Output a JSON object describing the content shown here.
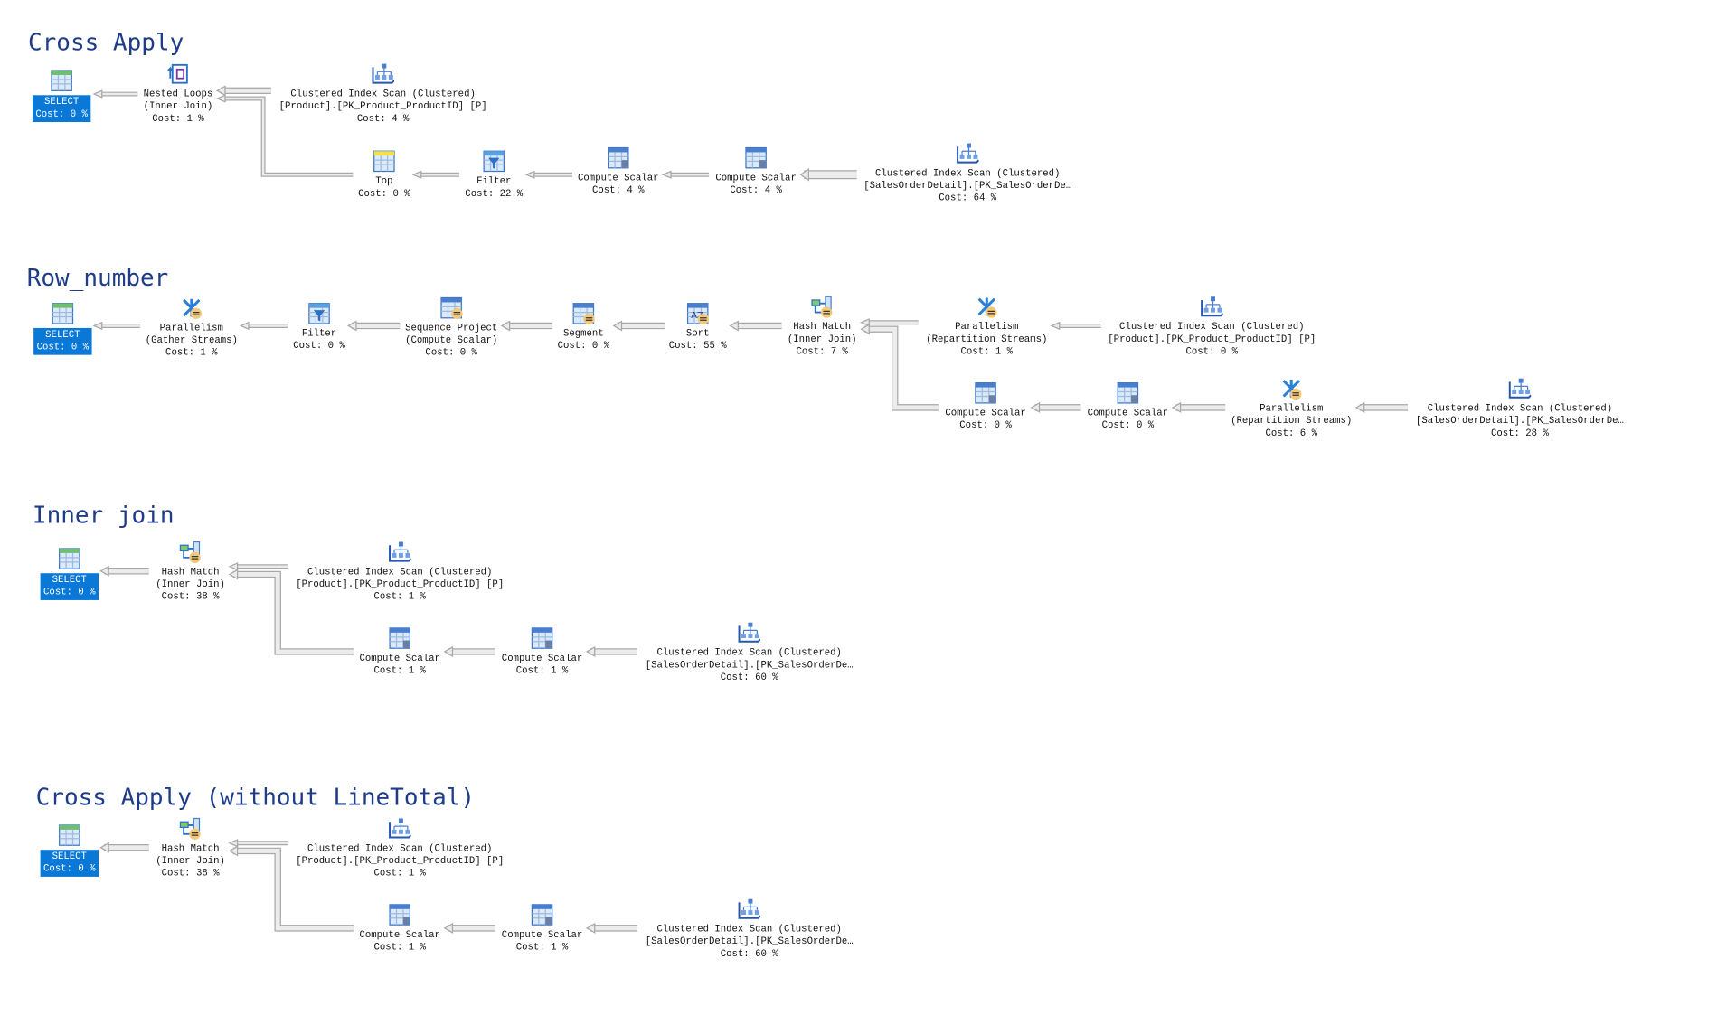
{
  "colors": {
    "title": "#1f3c88",
    "select_highlight": "#0a78d7",
    "arrow": "#a8a8a8"
  },
  "sections": [
    {
      "title": "Cross Apply",
      "nodes": [
        {
          "icon": "select-icon",
          "lines": [
            "SELECT",
            "Cost: 0 %"
          ],
          "selected": true
        },
        {
          "icon": "nested-loops-icon",
          "lines": [
            "Nested Loops",
            "(Inner Join)",
            "Cost: 1 %"
          ]
        },
        {
          "icon": "clustered-index-scan-icon",
          "lines": [
            "Clustered Index Scan (Clustered)",
            "[Product].[PK_Product_ProductID] [P]",
            "Cost: 4 %"
          ]
        },
        {
          "icon": "top-icon",
          "lines": [
            "Top",
            "Cost: 0 %"
          ]
        },
        {
          "icon": "filter-icon",
          "lines": [
            "Filter",
            "Cost: 22 %"
          ]
        },
        {
          "icon": "compute-scalar-icon",
          "lines": [
            "Compute Scalar",
            "Cost: 4 %"
          ]
        },
        {
          "icon": "compute-scalar-icon",
          "lines": [
            "Compute Scalar",
            "Cost: 4 %"
          ]
        },
        {
          "icon": "clustered-index-scan-icon",
          "lines": [
            "Clustered Index Scan (Clustered)",
            "[SalesOrderDetail].[PK_SalesOrderDe…",
            "Cost: 64 %"
          ]
        }
      ]
    },
    {
      "title": "Row_number",
      "nodes": [
        {
          "icon": "select-icon",
          "lines": [
            "SELECT",
            "Cost: 0 %"
          ],
          "selected": true
        },
        {
          "icon": "parallelism-gather-icon",
          "lines": [
            "Parallelism",
            "(Gather Streams)",
            "Cost: 1 %"
          ]
        },
        {
          "icon": "filter-icon",
          "lines": [
            "Filter",
            "Cost: 0 %"
          ]
        },
        {
          "icon": "sequence-project-icon",
          "lines": [
            "Sequence Project",
            "(Compute Scalar)",
            "Cost: 0 %"
          ]
        },
        {
          "icon": "segment-icon",
          "lines": [
            "Segment",
            "Cost: 0 %"
          ]
        },
        {
          "icon": "sort-icon",
          "lines": [
            "Sort",
            "Cost: 55 %"
          ]
        },
        {
          "icon": "hash-match-icon",
          "lines": [
            "Hash Match",
            "(Inner Join)",
            "Cost: 7 %"
          ]
        },
        {
          "icon": "parallelism-repartition-icon",
          "lines": [
            "Parallelism",
            "(Repartition Streams)",
            "Cost: 1 %"
          ]
        },
        {
          "icon": "clustered-index-scan-icon",
          "lines": [
            "Clustered Index Scan (Clustered)",
            "[Product].[PK_Product_ProductID] [P]",
            "Cost: 0 %"
          ]
        },
        {
          "icon": "compute-scalar-icon",
          "lines": [
            "Compute Scalar",
            "Cost: 0 %"
          ]
        },
        {
          "icon": "compute-scalar-icon",
          "lines": [
            "Compute Scalar",
            "Cost: 0 %"
          ]
        },
        {
          "icon": "parallelism-repartition-icon",
          "lines": [
            "Parallelism",
            "(Repartition Streams)",
            "Cost: 6 %"
          ]
        },
        {
          "icon": "clustered-index-scan-icon",
          "lines": [
            "Clustered Index Scan (Clustered)",
            "[SalesOrderDetail].[PK_SalesOrderDe…",
            "Cost: 28 %"
          ]
        }
      ]
    },
    {
      "title": "Inner join",
      "nodes": [
        {
          "icon": "select-icon",
          "lines": [
            "SELECT",
            "Cost: 0 %"
          ],
          "selected": true
        },
        {
          "icon": "hash-match-icon",
          "lines": [
            "Hash Match",
            "(Inner Join)",
            "Cost: 38 %"
          ]
        },
        {
          "icon": "clustered-index-scan-icon",
          "lines": [
            "Clustered Index Scan (Clustered)",
            "[Product].[PK_Product_ProductID] [P]",
            "Cost: 1 %"
          ]
        },
        {
          "icon": "compute-scalar-icon",
          "lines": [
            "Compute Scalar",
            "Cost: 1 %"
          ]
        },
        {
          "icon": "compute-scalar-icon",
          "lines": [
            "Compute Scalar",
            "Cost: 1 %"
          ]
        },
        {
          "icon": "clustered-index-scan-icon",
          "lines": [
            "Clustered Index Scan (Clustered)",
            "[SalesOrderDetail].[PK_SalesOrderDe…",
            "Cost: 60 %"
          ]
        }
      ]
    },
    {
      "title": "Cross Apply (without LineTotal)",
      "nodes": [
        {
          "icon": "select-icon",
          "lines": [
            "SELECT",
            "Cost: 0 %"
          ],
          "selected": true
        },
        {
          "icon": "hash-match-icon",
          "lines": [
            "Hash Match",
            "(Inner Join)",
            "Cost: 38 %"
          ]
        },
        {
          "icon": "clustered-index-scan-icon",
          "lines": [
            "Clustered Index Scan (Clustered)",
            "[Product].[PK_Product_ProductID] [P]",
            "Cost: 1 %"
          ]
        },
        {
          "icon": "compute-scalar-icon",
          "lines": [
            "Compute Scalar",
            "Cost: 1 %"
          ]
        },
        {
          "icon": "compute-scalar-icon",
          "lines": [
            "Compute Scalar",
            "Cost: 1 %"
          ]
        },
        {
          "icon": "clustered-index-scan-icon",
          "lines": [
            "Clustered Index Scan (Clustered)",
            "[SalesOrderDetail].[PK_SalesOrderDe…",
            "Cost: 60 %"
          ]
        }
      ]
    }
  ]
}
